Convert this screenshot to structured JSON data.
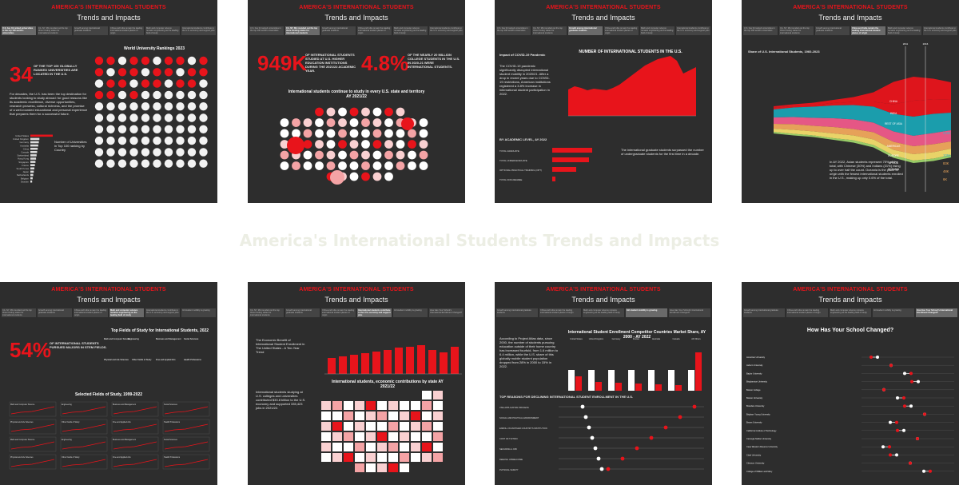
{
  "banner_title": "America's International Students Trends and Impacts",
  "panel_header": "AMERICA'S INTERNATIONAL STUDENTS",
  "panel_subtitle": "Trends and Impacts",
  "tabs": [
    "U.S. has 34 ranked universities in the top 100 world's universities",
    "CA, NY, MA rounded out the top three hosting states for international students",
    "Growth among international graduate students",
    "China and India remain the leading international student places of origin",
    "Math and computer science remains engineering as the leading field of study",
    "International students contribute to the U.S. economy and support jobs",
    "Intl student mobility is growing",
    "How Has Your School's International Enrollment Changed?"
  ],
  "panel1": {
    "big": "34",
    "headline": "OF THE TOP 100 GLOBALLY RANKED UNIVERSITIES ARE LOCATED IN THE U.S.",
    "chart_title": "World University Rankings 2023",
    "body": "For decades, the U.S. has been the top destination for students looking to study abroad: for good reasons like its academic excellence, diverse opportunities, research prowess, cultural richness, and the promise of a well-rounded educational and personal experience that prepares them for a successful future.",
    "legend": "Number of Universities in Top 100 ranking by Country",
    "countries": [
      "United States",
      "United Kingdom",
      "Germany",
      "Australia",
      "China",
      "Canada",
      "Switzerland",
      "Hong Kong",
      "Singapore",
      "France",
      "South Korea",
      "Japan",
      "Netherlands",
      "Belgium",
      "Sweden"
    ]
  },
  "panel2": {
    "big_left": "949K",
    "text_left": "OF INTERNATIONAL STUDENTS STUDIED AT U.S. HIGHER EDUCATION INSTITUTIONS DURING THE 2021/22 ACADEMIC YEAR.",
    "big_right": "4.8%",
    "text_right": "OF THE NEARLY 20 MILLION COLLEGE STUDENTS IN THE U.S. IN 2020-21 WERE INTERNATIONAL STUDENTS.",
    "map_title": "International students continue to study in every U.S. state and territory AY 2021/22"
  },
  "panel3": {
    "title": "Impact of COVID-19 Pandemic",
    "body": "The COVID-19 pandemic significantly disrupted international student mobility in 2020/21. After a drop in recent years due to COVID-19 restrictions, American institutions registered a 3.8% increase in international student participation in 2022.",
    "chart_title": "NUMBER OF INTERNATIONAL STUDENTS IN THE U.S.",
    "bars_title": "BY ACADEMIC LEVEL, AY 2022",
    "bars": [
      "TOTAL GRADUATE",
      "TOTAL UNDERGRADUATE",
      "OPTIONAL PRACTICAL TRAINING (OPT)",
      "TOTAL NON-DEGREE"
    ],
    "note": "The international graduate students surpassed the number of undergraduate students for the first time in a decade."
  },
  "panel4": {
    "title": "Share of U.S. International Students, 1960-2023",
    "regions": [
      "CHINA",
      "INDIA",
      "REST OF ASIA",
      "AMERICAS",
      "EUROPE",
      "AFRICA",
      "OCEANIA"
    ],
    "values": [
      "216K",
      "105K",
      "83K",
      "48K",
      "6K"
    ],
    "years": [
      "2011",
      "2016"
    ],
    "body": "In AY 2022, Asian students represent 75% of the total, with Chinese (30%) and Indians (21%) rising up to over half the count. Oceania is the place of origin with the fewest international students enrolled in the U.S., making up only 0.6% of the total."
  },
  "panel5": {
    "big": "54%",
    "text": "OF INTERNATIONAL STUDENTS PURSUED MAJORS IN STEM FIELDS.",
    "chart_title": "Top Fields of Study for International Students, 2022",
    "small_title": "Selected Fields of Study, 1999-2022",
    "fields": [
      "Math and Computer Science",
      "Engineering",
      "Business and Management",
      "Social Sciences",
      "Physical and Life Sciences",
      "Other Fields of Study",
      "Fine and Applied Arts",
      "Health Professions"
    ]
  },
  "panel6": {
    "title": "The Economic Benefit of International Student Enrollment in The United States - A Ten-Year Trend",
    "body": "International students studying at U.S. colleges and universities contributed $33.8 billion to the U.S. economy and supported 335,423 jobs in 2021/22.",
    "map_title": "International students, economic contributions by state AY 2021/22"
  },
  "panel7": {
    "body": "According to Project Atlas data, since 2000, the number of students pursuing education outside of their home country has increased fourfold, from 1.6 million to 6.4 million, while the U.S. share of this globally mobile student population dropped from 28% in 2000 to 15% in 2022.",
    "chart_title": "International Student Enrollment Competitor Countries Market Share, AY 2000 - AY 2022",
    "countries": [
      "United States",
      "United Kingdom",
      "Germany",
      "France",
      "Australia",
      "Canada",
      "All Others"
    ],
    "reasons_title": "TOP REASONS FOR DECLINING INTERNATIONAL STUDENT ENROLLMENT IN THE U.S.",
    "reasons": [
      "VISA APPLICATION PROCESS",
      "SOCIAL AND POLITICAL ENVIRONMENT",
      "ENROLL IN ANOTHER COUNTRY'S INSTITUTION",
      "COST OF TUITION",
      "SECURING A JOB",
      "FEELING UNWELCOME",
      "PHYSICAL SAFETY"
    ]
  },
  "panel8": {
    "title": "How Has Your School Changed?",
    "schools": [
      "American University",
      "Auburn University",
      "Baylor University",
      "Binghamton University",
      "Boston College",
      "Boston University",
      "Brandeis University",
      "Brigham Young University",
      "Brown University",
      "California Institute of Technology",
      "Carnegie Mellon University",
      "Case Western Reserve University",
      "Clark University",
      "Clemson University",
      "College of William and Mary"
    ]
  },
  "colors": {
    "accent": "#e8141b",
    "panel": "#2d2d2d"
  }
}
